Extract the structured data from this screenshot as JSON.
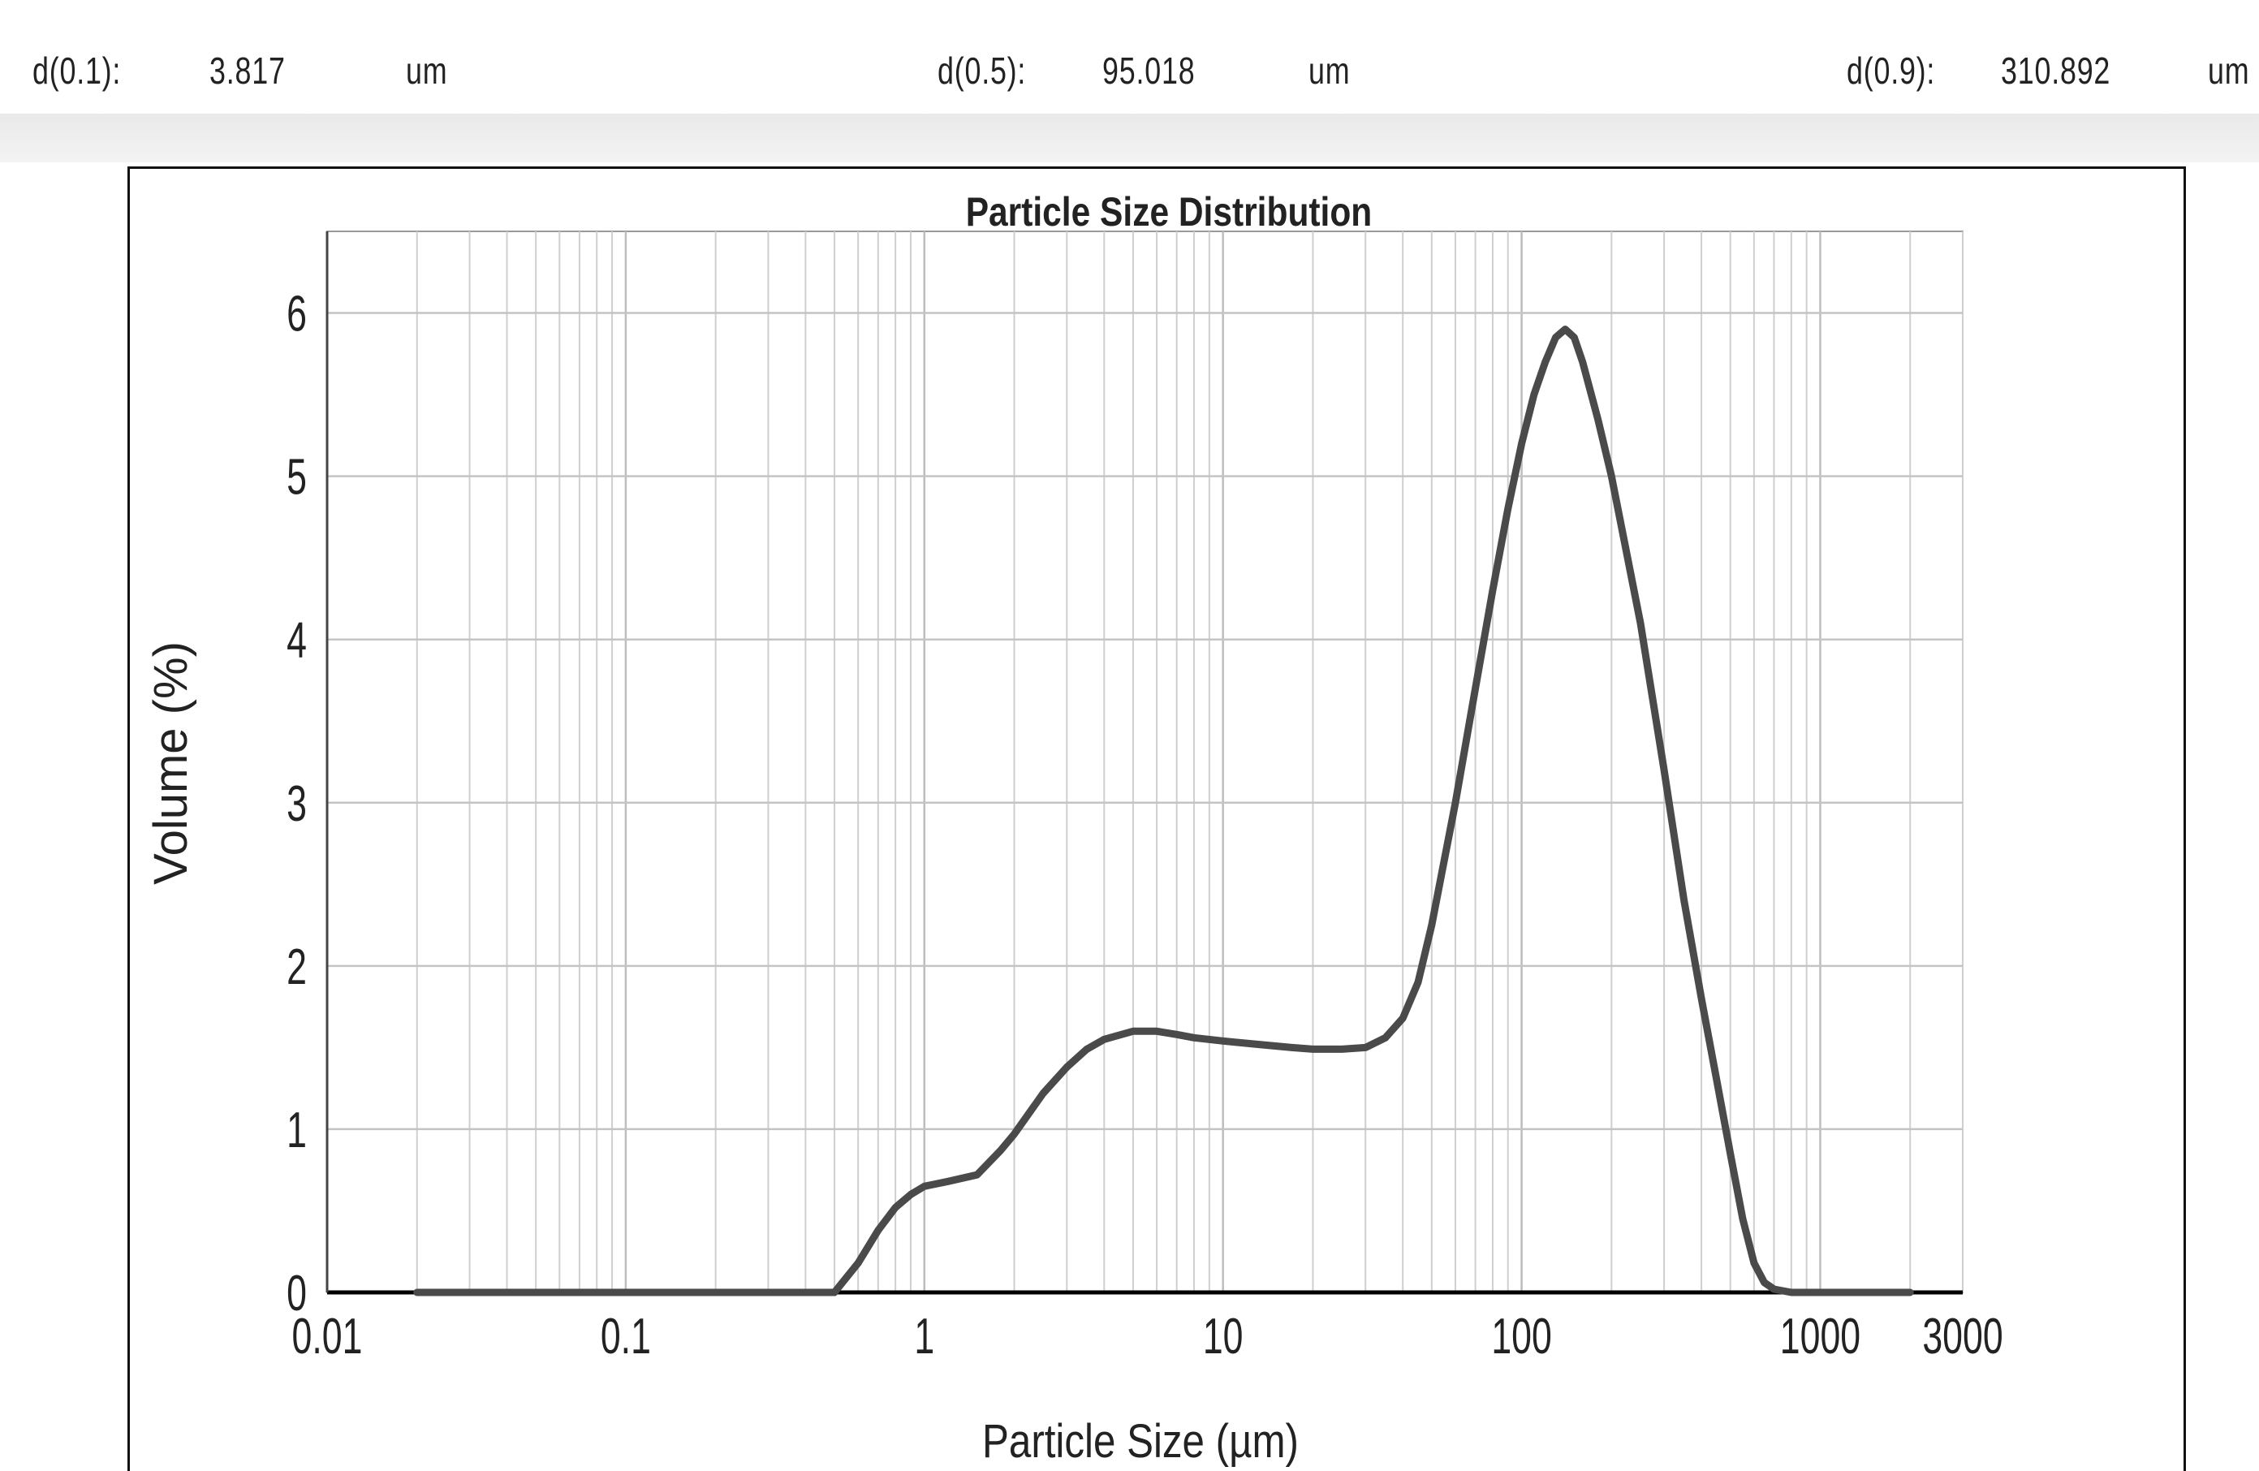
{
  "stats": {
    "d10": {
      "label": "d(0.1):",
      "value": "3.817",
      "unit": "um"
    },
    "d50": {
      "label": "d(0.5):",
      "value": "95.018",
      "unit": "um"
    },
    "d90": {
      "label": "d(0.9):",
      "value": "310.892",
      "unit": "um"
    }
  },
  "chart_data": {
    "type": "line",
    "title": "Particle Size Distribution",
    "xlabel": "Particle Size (µm)",
    "ylabel": "Volume (%)",
    "x_scale": "log",
    "xlim": [
      0.01,
      3000
    ],
    "ylim": [
      0,
      6.5
    ],
    "x_ticks": [
      "0.01",
      "0.1",
      "1",
      "10",
      "100",
      "1000",
      "3000"
    ],
    "y_ticks": [
      "0",
      "1",
      "2",
      "3",
      "4",
      "5",
      "6"
    ],
    "grid": true,
    "line_color": "#4a4a4a",
    "series": [
      {
        "x": [
          0.02,
          0.1,
          0.3,
          0.5,
          0.6,
          0.7,
          0.8,
          0.9,
          1.0,
          1.2,
          1.5,
          1.8,
          2.0,
          2.5,
          3.0,
          3.5,
          4.0,
          5.0,
          6.0,
          7.0,
          8.0,
          10,
          13,
          17,
          20,
          25,
          30,
          35,
          40,
          45,
          50,
          60,
          70,
          80,
          90,
          100,
          110,
          120,
          130,
          140,
          150,
          160,
          180,
          200,
          250,
          300,
          350,
          400,
          450,
          500,
          550,
          600,
          650,
          700,
          800,
          900,
          1000,
          2000
        ],
        "y": [
          0,
          0,
          0,
          0,
          0.18,
          0.38,
          0.52,
          0.6,
          0.65,
          0.68,
          0.72,
          0.87,
          0.97,
          1.22,
          1.38,
          1.49,
          1.55,
          1.6,
          1.6,
          1.58,
          1.56,
          1.54,
          1.52,
          1.5,
          1.49,
          1.49,
          1.5,
          1.56,
          1.68,
          1.9,
          2.25,
          3.0,
          3.7,
          4.3,
          4.8,
          5.2,
          5.5,
          5.7,
          5.85,
          5.9,
          5.85,
          5.7,
          5.35,
          5.0,
          4.1,
          3.2,
          2.4,
          1.8,
          1.3,
          0.85,
          0.45,
          0.18,
          0.06,
          0.02,
          0,
          0,
          0,
          0
        ]
      }
    ]
  }
}
